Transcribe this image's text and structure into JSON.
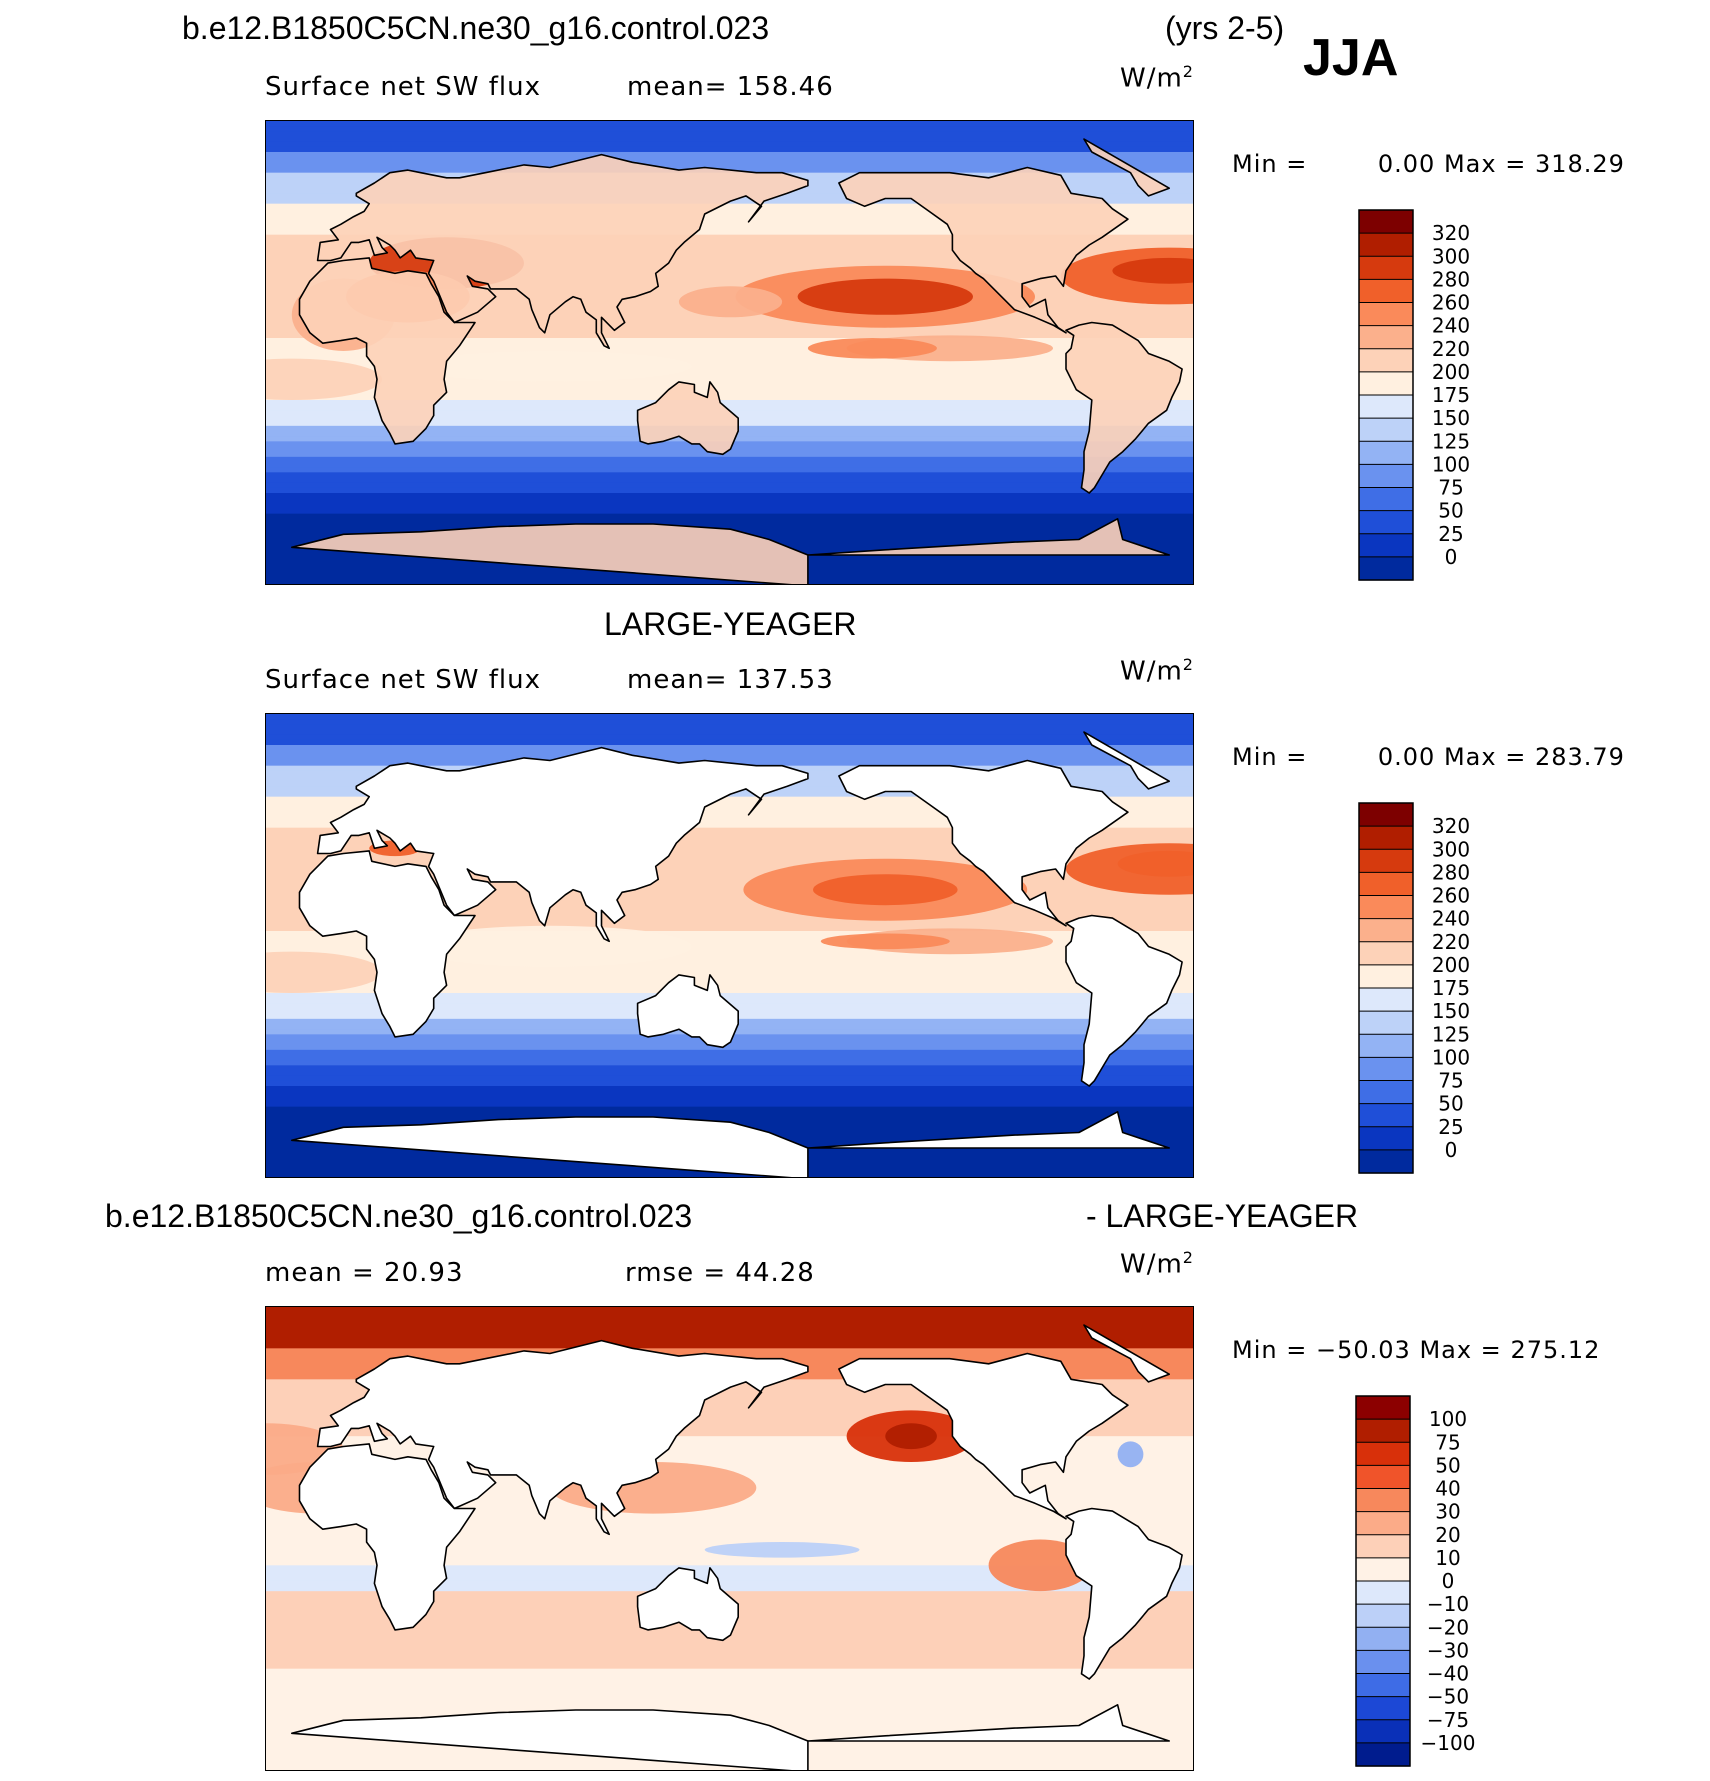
{
  "header": {
    "case_name": "b.e12.B1850C5CN.ne30_g16.control.023",
    "years": "(yrs 2-5)",
    "season": "JJA"
  },
  "chart_data": [
    {
      "type": "heatmap",
      "title": "b.e12.B1850C5CN.ne30_g16.control.023",
      "variable": "Surface net SW flux",
      "mean_text": "mean= 158.46",
      "units_base": "W/m",
      "units_exp": "2",
      "min_label": "Min =",
      "min_value": "0.00",
      "max_label": "Max =",
      "max_value": "318.29",
      "colorbar": {
        "levels": [
          "320",
          "300",
          "280",
          "260",
          "240",
          "220",
          "200",
          "175",
          "150",
          "125",
          "100",
          "75",
          "50",
          "25",
          "0"
        ],
        "colors": [
          "#7d0000",
          "#b01e00",
          "#d63a0e",
          "#f0602a",
          "#fa8a5a",
          "#fbb08c",
          "#fdd2b8",
          "#fff0e0",
          "#dde8fb",
          "#bdd2f8",
          "#93b3f4",
          "#6a92ef",
          "#3f6ee6",
          "#1f4fd8",
          "#0a36c0",
          "#002a9e"
        ]
      },
      "map": "sw_control"
    },
    {
      "type": "heatmap",
      "title": "LARGE-YEAGER",
      "variable": "Surface net SW flux",
      "mean_text": "mean= 137.53",
      "units_base": "W/m",
      "units_exp": "2",
      "min_label": "Min =",
      "min_value": "0.00",
      "max_label": "Max =",
      "max_value": "283.79",
      "colorbar": {
        "levels": [
          "320",
          "300",
          "280",
          "260",
          "240",
          "220",
          "200",
          "175",
          "150",
          "125",
          "100",
          "75",
          "50",
          "25",
          "0"
        ],
        "colors": [
          "#7d0000",
          "#b01e00",
          "#d63a0e",
          "#f0602a",
          "#fa8a5a",
          "#fbb08c",
          "#fdd2b8",
          "#fff0e0",
          "#dde8fb",
          "#bdd2f8",
          "#93b3f4",
          "#6a92ef",
          "#3f6ee6",
          "#1f4fd8",
          "#0a36c0",
          "#002a9e"
        ]
      },
      "map": "sw_large_yeager"
    },
    {
      "type": "heatmap",
      "title_left": "b.e12.B1850C5CN.ne30_g16.control.023",
      "title_right": "- LARGE-YEAGER",
      "mean_text": "mean =   20.93",
      "rmse_text": "rmse =   44.28",
      "units_base": "W/m",
      "units_exp": "2",
      "min_label": "Min =",
      "min_value": "−50.03",
      "max_label": "Max =",
      "max_value": "275.12",
      "colorbar": {
        "levels": [
          "100",
          "75",
          "50",
          "40",
          "30",
          "20",
          "10",
          "0",
          "−10",
          "−20",
          "−30",
          "−40",
          "−50",
          "−75",
          "−100"
        ],
        "colors": [
          "#8c0000",
          "#b01e00",
          "#d8300a",
          "#f0542a",
          "#f7885c",
          "#fbab88",
          "#fdd0b8",
          "#fff2e6",
          "#dde8fb",
          "#bcd0f8",
          "#92b0f2",
          "#6a90ee",
          "#3e6ce6",
          "#1c48d6",
          "#0a30b8",
          "#001c8e"
        ]
      },
      "map": "sw_difference"
    }
  ]
}
